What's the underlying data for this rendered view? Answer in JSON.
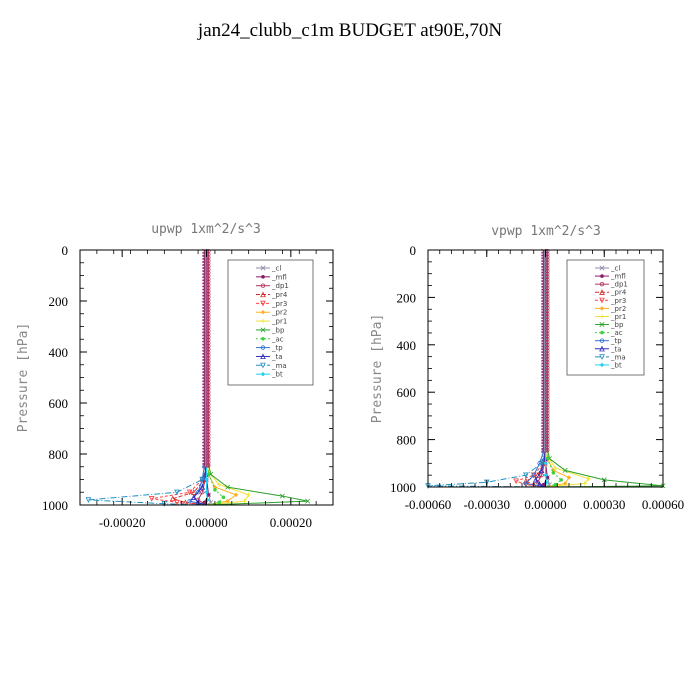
{
  "title": "jan24_clubb_c1m  BUDGET at90E,70N",
  "legend_labels": [
    "_cl",
    "_mfl",
    "_dp1",
    "_pr4",
    "_pr3",
    "_pr2",
    "_pr1",
    "_bp",
    "_ac",
    "_tp",
    "_ta",
    "_ma",
    "_bt"
  ],
  "colors": {
    "_cl": "#8c8ca8",
    "_mfl": "#8b1a6b",
    "_dp1": "#b0305a",
    "_pr4": "#d42a2a",
    "_pr3": "#ff4040",
    "_pr2": "#ffb020",
    "_pr1": "#f0e030",
    "_bp": "#2aa02a",
    "_ac": "#40d040",
    "_tp": "#3070d0",
    "_ta": "#3030c0",
    "_ma": "#2090c0",
    "_bt": "#20d0f0"
  },
  "chart_data": [
    {
      "type": "line",
      "title": "upwp   1xm^2/s^3",
      "ylabel": "Pressure [hPa]",
      "xlabel": "",
      "ylim": [
        1000,
        0
      ],
      "xlim": [
        -0.0003,
        0.0003
      ],
      "yticks": [
        0,
        200,
        400,
        600,
        800,
        1000
      ],
      "ytick_labels": [
        "0",
        "200",
        "400",
        "600",
        "800",
        "1000"
      ],
      "xticks": [
        -0.0002,
        0,
        0.0002
      ],
      "xtick_labels": [
        "-0.00020",
        "0.00000",
        "0.00020"
      ],
      "grid": false,
      "legend_position": "top-right",
      "series": [
        {
          "name": "_cl",
          "points": [
            [
              0,
              0
            ],
            [
              0,
              800
            ],
            [
              0,
              900
            ],
            [
              5e-06,
              960
            ],
            [
              1e-05,
              990
            ],
            [
              0,
              1000
            ]
          ]
        },
        {
          "name": "_mfl",
          "points": [
            [
              0,
              0
            ],
            [
              0,
              800
            ],
            [
              0,
              900
            ],
            [
              5e-06,
              960
            ],
            [
              -5e-06,
              990
            ],
            [
              0,
              1000
            ]
          ]
        },
        {
          "name": "_dp1",
          "points": [
            [
              0,
              0
            ],
            [
              0,
              800
            ],
            [
              -3e-06,
              900
            ],
            [
              -1e-05,
              950
            ],
            [
              -2e-05,
              980
            ],
            [
              0,
              1000
            ]
          ]
        },
        {
          "name": "_pr4",
          "points": [
            [
              0,
              0
            ],
            [
              0,
              800
            ],
            [
              -5e-06,
              900
            ],
            [
              -3e-05,
              950
            ],
            [
              -8e-05,
              975
            ],
            [
              -5e-05,
              990
            ],
            [
              0,
              1000
            ]
          ]
        },
        {
          "name": "_pr3",
          "points": [
            [
              0,
              0
            ],
            [
              0,
              800
            ],
            [
              -1e-05,
              900
            ],
            [
              -4e-05,
              950
            ],
            [
              -0.00013,
              975
            ],
            [
              -7e-05,
              990
            ],
            [
              0,
              1000
            ]
          ]
        },
        {
          "name": "_pr2",
          "points": [
            [
              0,
              0
            ],
            [
              0,
              800
            ],
            [
              5e-06,
              880
            ],
            [
              2e-05,
              930
            ],
            [
              7e-05,
              960
            ],
            [
              5e-05,
              985
            ],
            [
              0,
              1000
            ]
          ]
        },
        {
          "name": "_pr1",
          "points": [
            [
              0,
              0
            ],
            [
              0,
              800
            ],
            [
              5e-06,
              870
            ],
            [
              3e-05,
              920
            ],
            [
              0.0001,
              960
            ],
            [
              9e-05,
              985
            ],
            [
              0,
              1000
            ]
          ]
        },
        {
          "name": "_bp",
          "points": [
            [
              0,
              0
            ],
            [
              0,
              800
            ],
            [
              1e-05,
              880
            ],
            [
              5e-05,
              930
            ],
            [
              0.00018,
              965
            ],
            [
              0.00024,
              985
            ],
            [
              0,
              1000
            ]
          ]
        },
        {
          "name": "_ac",
          "points": [
            [
              0,
              0
            ],
            [
              0,
              800
            ],
            [
              5e-06,
              880
            ],
            [
              2e-05,
              940
            ],
            [
              4e-05,
              970
            ],
            [
              3e-05,
              990
            ],
            [
              0,
              1000
            ]
          ]
        },
        {
          "name": "_tp",
          "points": [
            [
              0,
              0
            ],
            [
              0,
              790
            ],
            [
              -5e-06,
              850
            ],
            [
              -1e-05,
              900
            ],
            [
              -2e-05,
              950
            ],
            [
              -4e-05,
              985
            ],
            [
              0,
              1000
            ]
          ]
        },
        {
          "name": "_ta",
          "points": [
            [
              0,
              0
            ],
            [
              0,
              800
            ],
            [
              -3e-06,
              880
            ],
            [
              -1e-05,
              930
            ],
            [
              -3e-05,
              970
            ],
            [
              -2e-05,
              990
            ],
            [
              0,
              1000
            ]
          ]
        },
        {
          "name": "_ma",
          "points": [
            [
              0,
              0
            ],
            [
              0,
              800
            ],
            [
              -1e-05,
              900
            ],
            [
              -7e-05,
              950
            ],
            [
              -0.00028,
              980
            ],
            [
              -0.0001,
              995
            ],
            [
              0,
              1000
            ]
          ]
        },
        {
          "name": "_bt",
          "points": [
            [
              0,
              0
            ],
            [
              0,
              800
            ],
            [
              0,
              900
            ],
            [
              0,
              950
            ],
            [
              2e-06,
              980
            ],
            [
              0,
              1000
            ]
          ]
        }
      ]
    },
    {
      "type": "line",
      "title": "vpwp   1xm^2/s^3",
      "ylabel": "Pressure [hPa]",
      "xlabel": "",
      "ylim": [
        1000,
        0
      ],
      "xlim": [
        -0.0006,
        0.0006
      ],
      "yticks": [
        0,
        200,
        400,
        600,
        800,
        1000
      ],
      "ytick_labels": [
        "0",
        "200",
        "400",
        "600",
        "800",
        "1000"
      ],
      "xticks": [
        -0.0006,
        -0.0003,
        0,
        0.0003,
        0.0006
      ],
      "xtick_labels": [
        "-0.00060",
        "-0.00030",
        "0.00000",
        "0.00030",
        "0.00060"
      ],
      "grid": false,
      "legend_position": "top-right",
      "series": [
        {
          "name": "_cl",
          "points": [
            [
              0,
              0
            ],
            [
              0,
              800
            ],
            [
              0,
              900
            ],
            [
              1e-05,
              960
            ],
            [
              2e-05,
              990
            ],
            [
              0,
              1000
            ]
          ]
        },
        {
          "name": "_mfl",
          "points": [
            [
              0,
              0
            ],
            [
              0,
              800
            ],
            [
              0,
              900
            ],
            [
              1e-05,
              960
            ],
            [
              -1e-05,
              990
            ],
            [
              0,
              1000
            ]
          ]
        },
        {
          "name": "_dp1",
          "points": [
            [
              0,
              0
            ],
            [
              0,
              800
            ],
            [
              -5e-06,
              900
            ],
            [
              -2e-05,
              950
            ],
            [
              -4e-05,
              980
            ],
            [
              0,
              1000
            ]
          ]
        },
        {
          "name": "_pr4",
          "points": [
            [
              0,
              0
            ],
            [
              0,
              800
            ],
            [
              -1e-05,
              900
            ],
            [
              -4e-05,
              950
            ],
            [
              -0.0001,
              975
            ],
            [
              -6e-05,
              990
            ],
            [
              0,
              1000
            ]
          ]
        },
        {
          "name": "_pr3",
          "points": [
            [
              0,
              0
            ],
            [
              0,
              800
            ],
            [
              -1e-05,
              900
            ],
            [
              -6e-05,
              950
            ],
            [
              -0.00015,
              975
            ],
            [
              -0.0001,
              990
            ],
            [
              0,
              1000
            ]
          ]
        },
        {
          "name": "_pr2",
          "points": [
            [
              0,
              0
            ],
            [
              0,
              800
            ],
            [
              1e-05,
              880
            ],
            [
              4e-05,
              930
            ],
            [
              0.00012,
              960
            ],
            [
              0.0001,
              985
            ],
            [
              0,
              1000
            ]
          ]
        },
        {
          "name": "_pr1",
          "points": [
            [
              0,
              0
            ],
            [
              0,
              800
            ],
            [
              1e-05,
              870
            ],
            [
              5e-05,
              920
            ],
            [
              0.00022,
              965
            ],
            [
              0.0002,
              985
            ],
            [
              0,
              1000
            ]
          ]
        },
        {
          "name": "_bp",
          "points": [
            [
              0,
              0
            ],
            [
              0,
              800
            ],
            [
              2e-05,
              880
            ],
            [
              0.0001,
              930
            ],
            [
              0.0003,
              970
            ],
            [
              0.0006,
              995
            ],
            [
              0,
              1000
            ]
          ]
        },
        {
          "name": "_ac",
          "points": [
            [
              0,
              0
            ],
            [
              0,
              800
            ],
            [
              1e-05,
              880
            ],
            [
              4e-05,
              940
            ],
            [
              8e-05,
              970
            ],
            [
              5e-05,
              990
            ],
            [
              0,
              1000
            ]
          ]
        },
        {
          "name": "_tp",
          "points": [
            [
              0,
              0
            ],
            [
              0,
              800
            ],
            [
              -1e-05,
              850
            ],
            [
              -3e-05,
              900
            ],
            [
              -6e-05,
              950
            ],
            [
              -0.0001,
              985
            ],
            [
              0,
              1000
            ]
          ]
        },
        {
          "name": "_ta",
          "points": [
            [
              0,
              0
            ],
            [
              0,
              800
            ],
            [
              -5e-06,
              880
            ],
            [
              -2e-05,
              930
            ],
            [
              -5e-05,
              970
            ],
            [
              -3e-05,
              990
            ],
            [
              0,
              1000
            ]
          ]
        },
        {
          "name": "_ma",
          "points": [
            [
              0,
              0
            ],
            [
              0,
              800
            ],
            [
              -2e-05,
              900
            ],
            [
              -0.0001,
              950
            ],
            [
              -0.0003,
              980
            ],
            [
              -0.0006,
              995
            ],
            [
              0,
              1000
            ]
          ]
        },
        {
          "name": "_bt",
          "points": [
            [
              0,
              0
            ],
            [
              0,
              800
            ],
            [
              0,
              900
            ],
            [
              0,
              950
            ],
            [
              5e-06,
              980
            ],
            [
              0,
              1000
            ]
          ]
        }
      ]
    }
  ]
}
